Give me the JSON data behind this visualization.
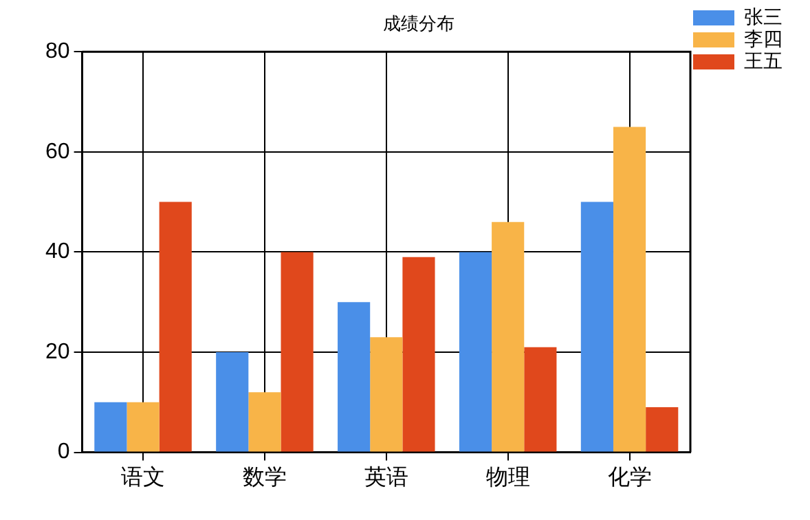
{
  "chart_data": {
    "type": "bar",
    "title": "成绩分布",
    "categories": [
      "语文",
      "数学",
      "英语",
      "物理",
      "化学"
    ],
    "series": [
      {
        "name": "张三",
        "color": "#4a8fe8",
        "values": [
          10,
          20,
          30,
          40,
          50
        ]
      },
      {
        "name": "李四",
        "color": "#f8b448",
        "values": [
          10,
          12,
          23,
          46,
          65
        ]
      },
      {
        "name": "王五",
        "color": "#e0481c",
        "values": [
          50,
          40,
          39,
          21,
          9
        ]
      }
    ],
    "ylim": [
      0,
      80
    ],
    "yticks": [
      0,
      20,
      40,
      60,
      80
    ],
    "grid": true,
    "legend": "top right"
  }
}
